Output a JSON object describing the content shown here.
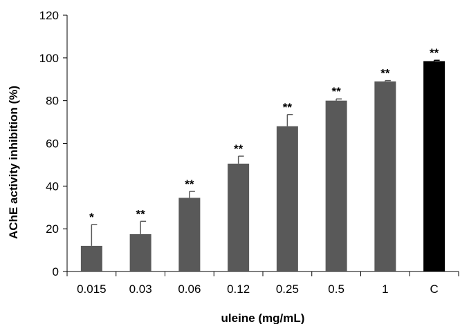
{
  "chart_data": {
    "type": "bar",
    "title": "",
    "xlabel": "uleine (mg/mL)",
    "ylabel": "AChE activity inhibition (%)",
    "ylim": [
      0,
      120
    ],
    "yticks": [
      0,
      20,
      40,
      60,
      80,
      100,
      120
    ],
    "grid": false,
    "categories": [
      "0.015",
      "0.03",
      "0.06",
      "0.12",
      "0.25",
      "0.5",
      "1",
      "C"
    ],
    "values": [
      12,
      17.5,
      34.5,
      50.5,
      68,
      80,
      89,
      98.5
    ],
    "errors": [
      10,
      6,
      3,
      3.5,
      5.5,
      0.8,
      0.4,
      0.4
    ],
    "significance": [
      "*",
      "**",
      "**",
      "**",
      "**",
      "**",
      "**",
      "**"
    ],
    "colors": {
      "bar": "#595959",
      "control_bar": "#000000",
      "axis": "#000000",
      "error_bar": "#595959"
    }
  }
}
